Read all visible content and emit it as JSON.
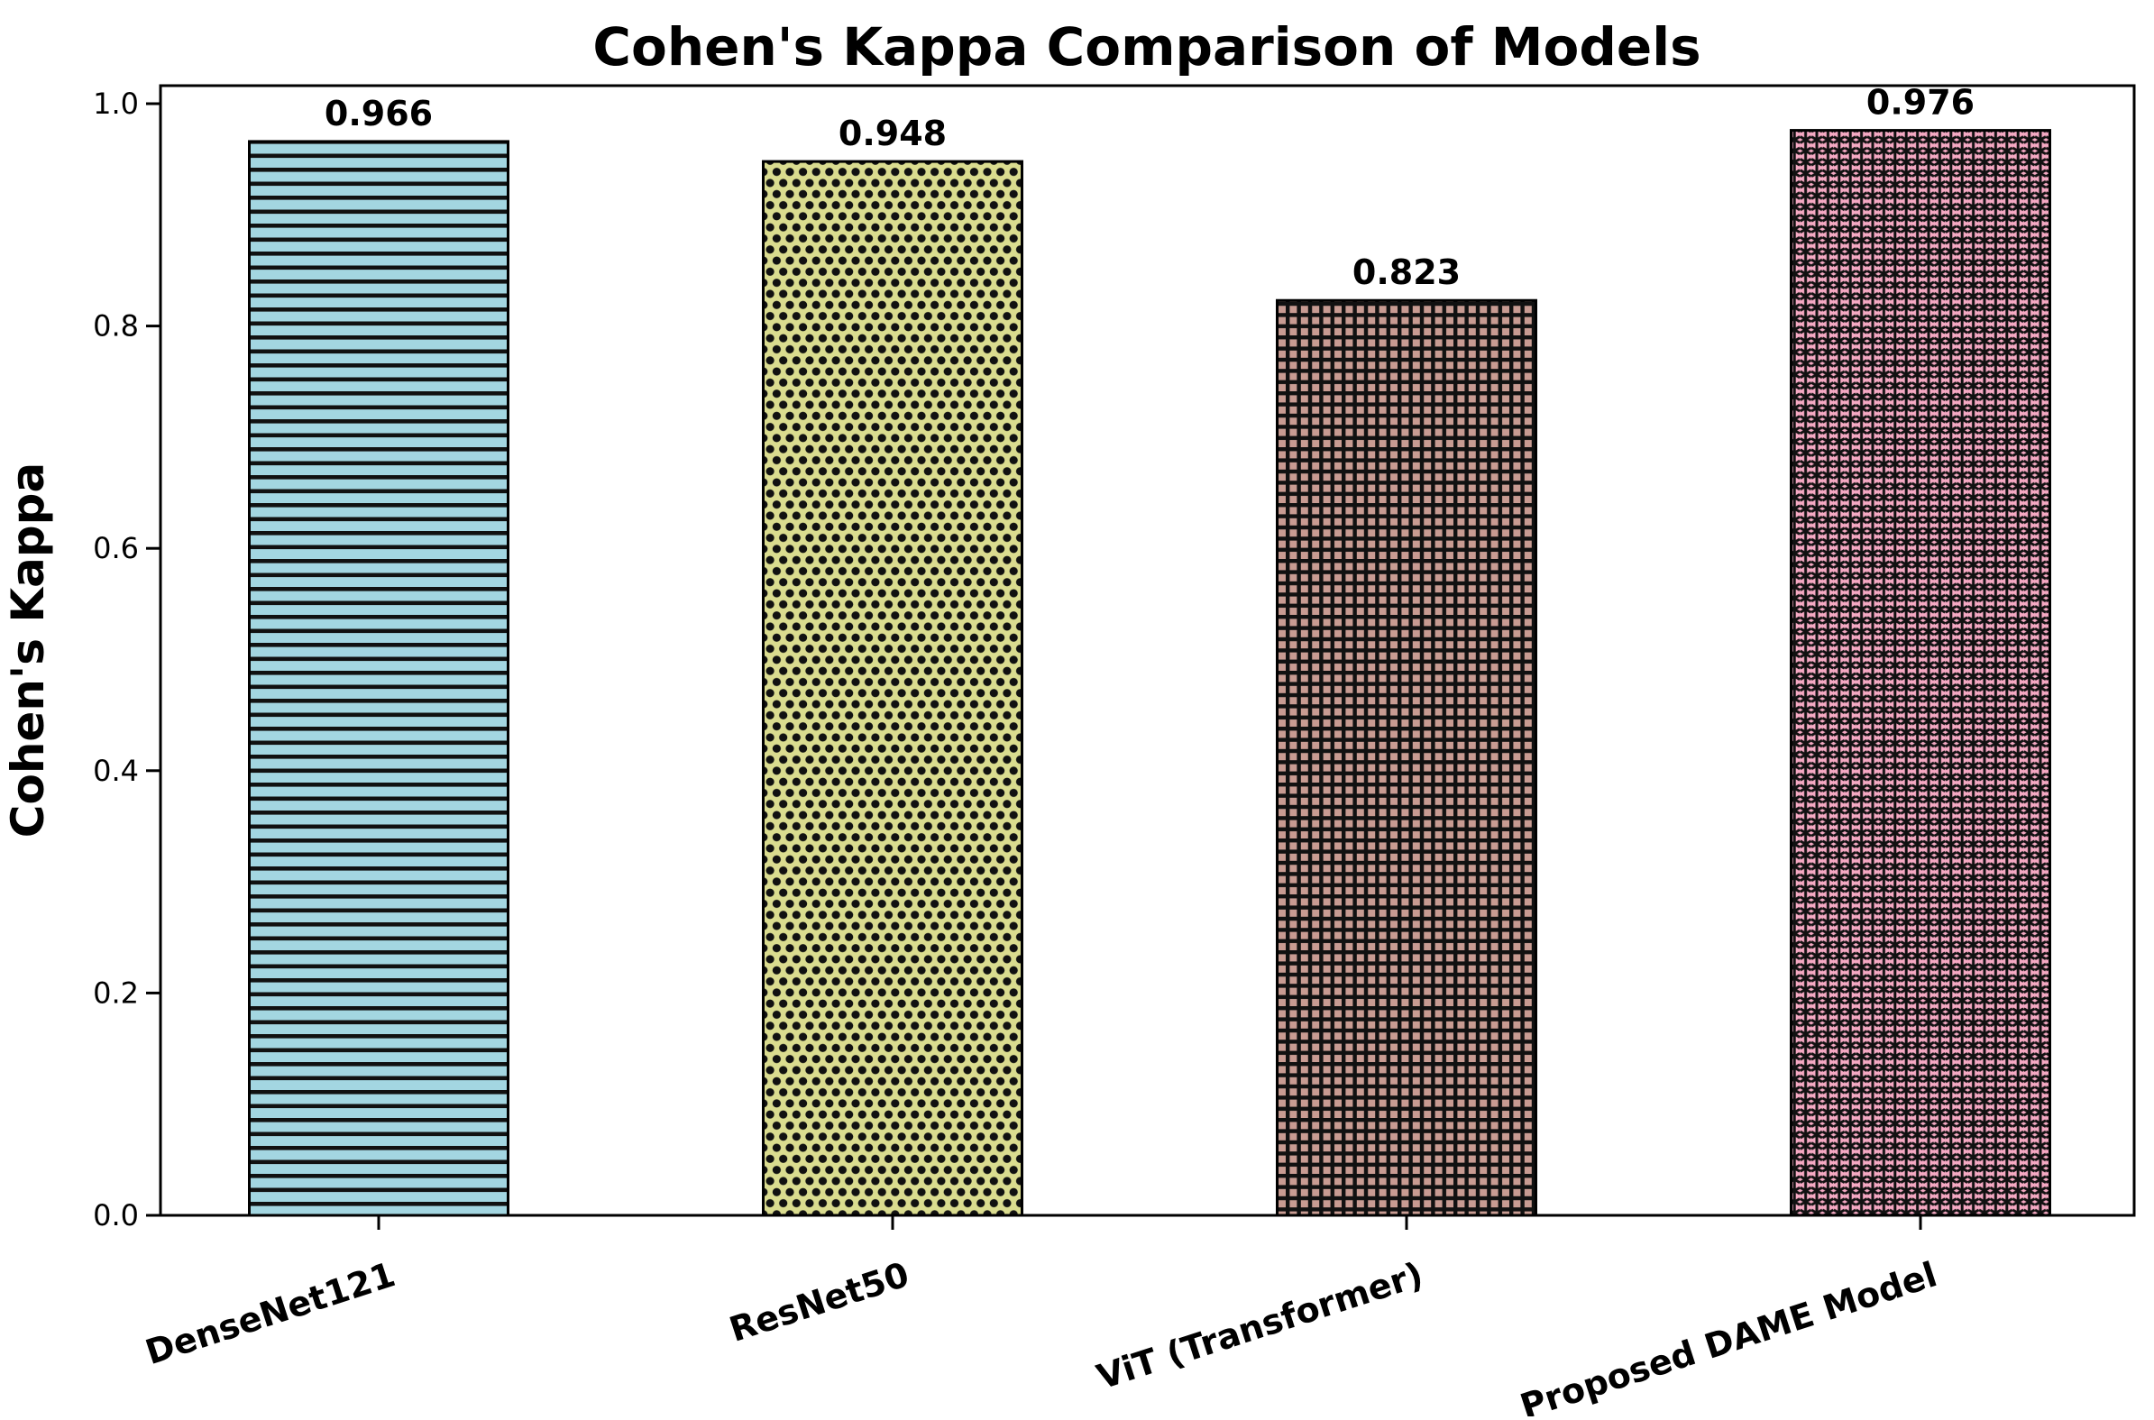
{
  "chart_data": {
    "type": "bar",
    "title": "Cohen's Kappa Comparison of Models",
    "ylabel": "Cohen's Kappa",
    "xlabel": "",
    "categories": [
      "DenseNet121",
      "ResNet50",
      "ViT (Transformer)",
      "Proposed DAME Model"
    ],
    "values": [
      0.966,
      0.948,
      0.823,
      0.976
    ],
    "value_labels": [
      "0.966",
      "0.948",
      "0.823",
      "0.976"
    ],
    "yticks": [
      0.0,
      0.2,
      0.4,
      0.6,
      0.8,
      1.0
    ],
    "ytick_labels": [
      "0.0",
      "0.2",
      "0.4",
      "0.6",
      "0.8",
      "1.0"
    ],
    "ylim": [
      0.0,
      1.016
    ],
    "xtick_rotation_degrees": -18,
    "grid": false,
    "legend": null,
    "bar_colors": [
      "#A3D6E1",
      "#DADC8F",
      "#C89B92",
      "#F5A9C3"
    ],
    "hatch_styles": [
      "horizontal-lines",
      "dots",
      "crosshatch-grid",
      "stars"
    ],
    "hatch_color": "#111111",
    "bar_edge_color": "#000000",
    "text_color": "#000000",
    "background_color": "#FFFFFF"
  }
}
